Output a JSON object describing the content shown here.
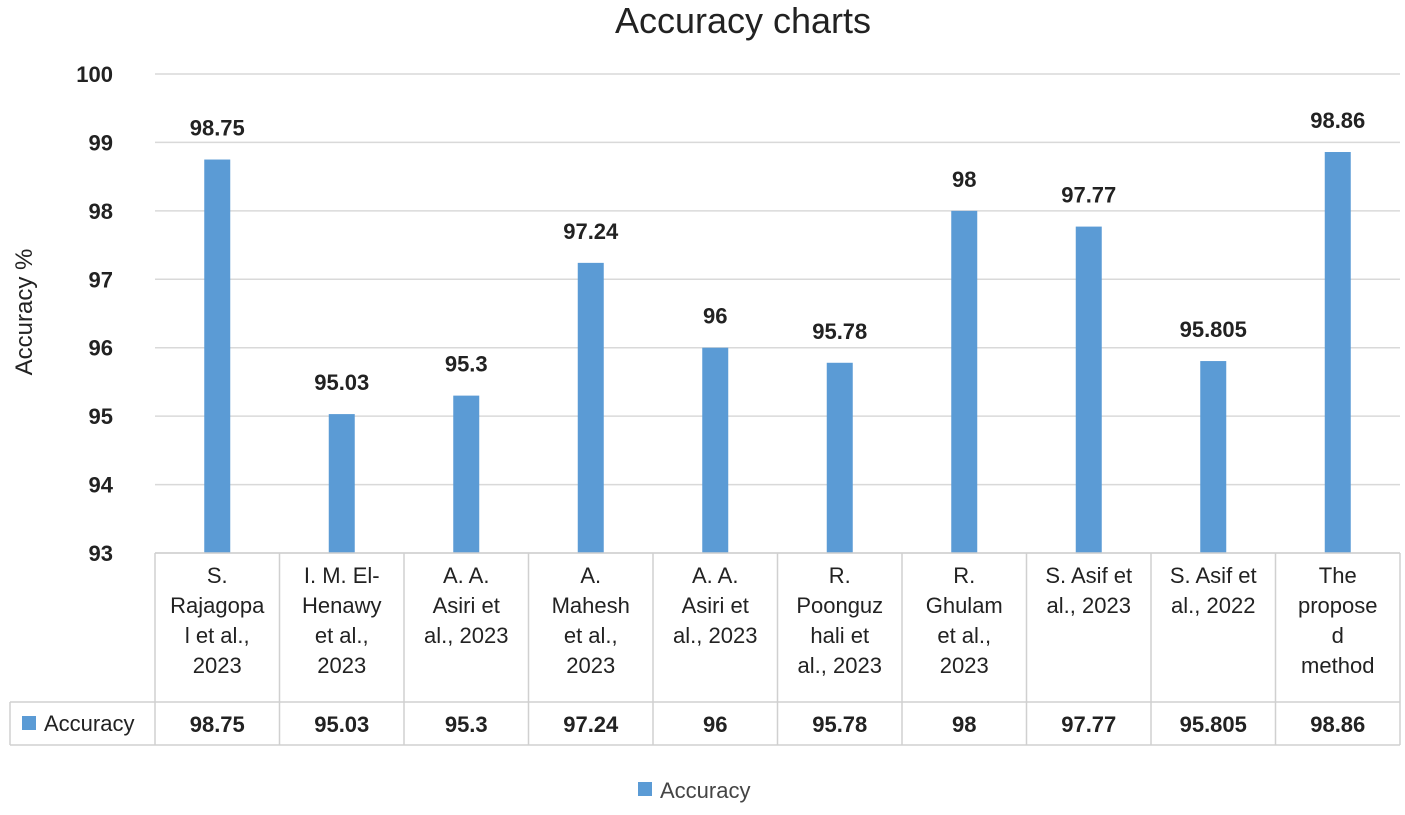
{
  "chart_data": {
    "type": "bar",
    "title": "Accuracy charts",
    "ylabel": "Accuracy %",
    "xlabel": "",
    "ylim": [
      93,
      100
    ],
    "yticks": [
      93,
      94,
      95,
      96,
      97,
      98,
      99,
      100
    ],
    "grid": true,
    "legend_position": "bottom",
    "data_table": true,
    "categories": [
      [
        "S.",
        "Rajagopa",
        "l et al.,",
        "2023"
      ],
      [
        "I. M. El-",
        "Henawy",
        "et al.,",
        "2023"
      ],
      [
        "A. A.",
        "Asiri et",
        "al., 2023"
      ],
      [
        "A.",
        "Mahesh",
        "et al.,",
        "2023"
      ],
      [
        "A. A.",
        "Asiri et",
        "al., 2023"
      ],
      [
        "R.",
        "Poonguz",
        "hali et",
        "al., 2023"
      ],
      [
        "R.",
        "Ghulam",
        "et al.,",
        "2023"
      ],
      [
        "S. Asif et",
        "al., 2023"
      ],
      [
        "S. Asif et",
        "al., 2022"
      ],
      [
        "The",
        "propose",
        "d",
        "method"
      ]
    ],
    "series": [
      {
        "name": "Accuracy",
        "color": "#5b9bd5",
        "values": [
          98.75,
          95.03,
          95.3,
          97.24,
          96,
          95.78,
          98,
          97.77,
          95.805,
          98.86
        ],
        "labels": [
          "98.75",
          "95.03",
          "95.3",
          "97.24",
          "96",
          "95.78",
          "98",
          "97.77",
          "95.805",
          "98.86"
        ]
      }
    ],
    "colors": {
      "bar": "#5b9bd5",
      "grid": "#d9d9d9",
      "table_border": "#d0d0d0"
    }
  }
}
